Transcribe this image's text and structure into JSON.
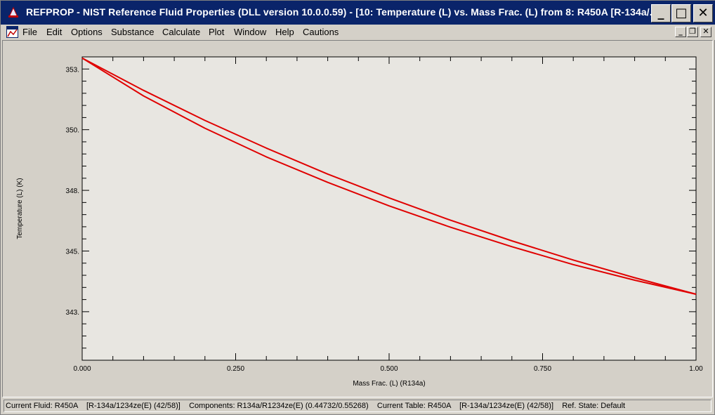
{
  "window": {
    "title": "REFPROP - NIST Reference Fluid Properties (DLL version 10.0.0.59) - [10: Temperature (L) vs. Mass Frac. (L) from 8: R450A    [R-134a/...",
    "minimize_glyph": "_",
    "maximize_glyph": "□",
    "close_glyph": "✕",
    "mdi_minimize_glyph": "_",
    "mdi_restore_glyph": "❐",
    "mdi_close_glyph": "✕"
  },
  "menu": {
    "file": "File",
    "edit": "Edit",
    "options": "Options",
    "substance": "Substance",
    "calculate": "Calculate",
    "plot": "Plot",
    "window": "Window",
    "help": "Help",
    "cautions": "Cautions"
  },
  "chart_data": {
    "type": "line",
    "title": "",
    "xlabel": "Mass Frac. (L) (R134a)",
    "ylabel": "Temperature (L) (K)",
    "xlim": [
      0,
      1
    ],
    "ylim": [
      341.0,
      353.5
    ],
    "x_ticks": [
      0,
      0.25,
      0.5,
      0.75,
      1.0
    ],
    "x_tick_labels": [
      "0.000",
      "0.250",
      "0.500",
      "0.750",
      "1.00"
    ],
    "y_ticks": [
      343.0,
      345.5,
      348.0,
      350.5,
      353.0
    ],
    "y_tick_labels": [
      "343.",
      "345.",
      "348.",
      "350.",
      "353."
    ],
    "series": [
      {
        "name": "upper",
        "color": "#e00000",
        "x": [
          0.0,
          0.1,
          0.2,
          0.3,
          0.4,
          0.5,
          0.6,
          0.7,
          0.8,
          0.9,
          1.0
        ],
        "y": [
          353.45,
          352.12,
          350.88,
          349.74,
          348.67,
          347.69,
          346.77,
          345.92,
          345.13,
          344.4,
          343.72
        ]
      },
      {
        "name": "lower",
        "color": "#e00000",
        "x": [
          0.0,
          0.1,
          0.2,
          0.3,
          0.4,
          0.5,
          0.6,
          0.7,
          0.8,
          0.9,
          1.0
        ],
        "y": [
          353.45,
          351.89,
          350.56,
          349.38,
          348.33,
          347.36,
          346.48,
          345.68,
          344.94,
          344.3,
          343.72
        ]
      }
    ]
  },
  "status": {
    "text": "Current Fluid: R450A    [R-134a/1234ze(E) (42/58)]    Components: R134a/R1234ze(E) (0.44732/0.55268)    Current Table: R450A    [R-134a/1234ze(E) (42/58)]    Ref. State: Default"
  }
}
